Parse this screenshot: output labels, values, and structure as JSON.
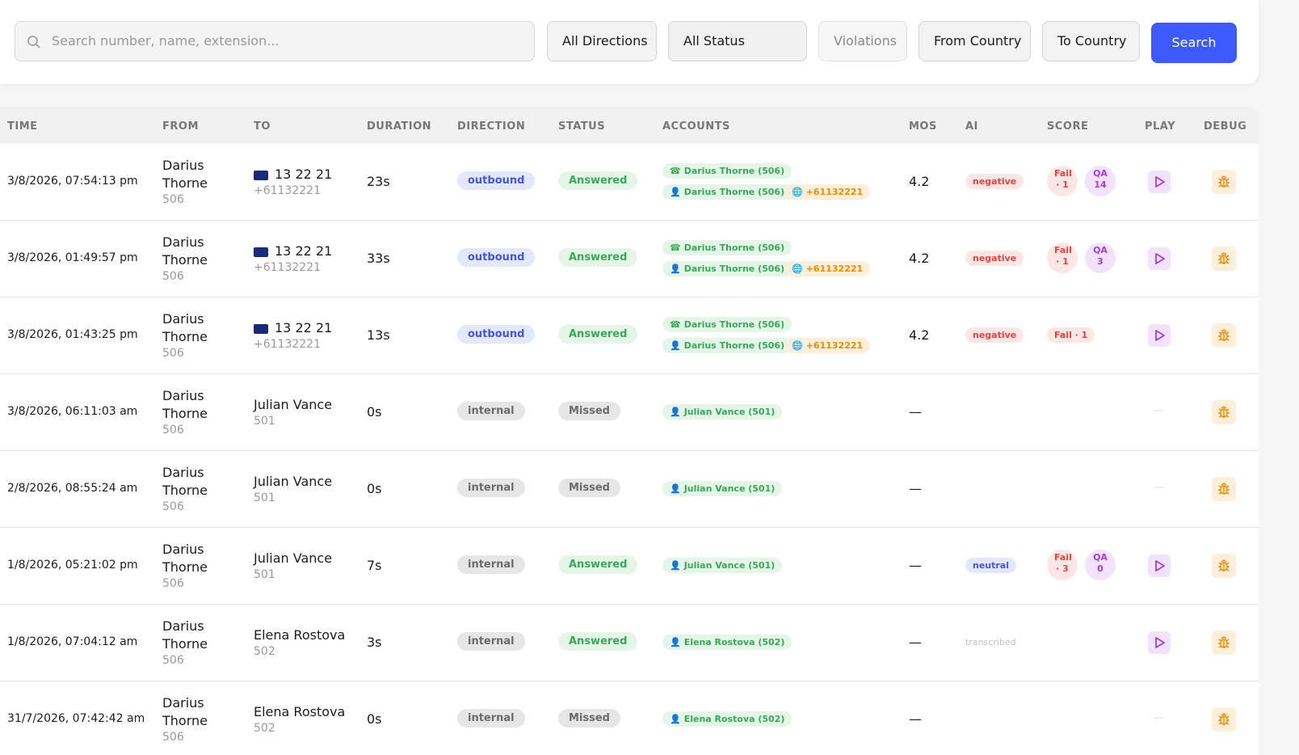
{
  "filters": {
    "search_placeholder": "Search number, name, extension...",
    "buttons": [
      "All Directions",
      "All Status",
      "Violations",
      "From Country",
      "To Country"
    ],
    "search_button": "Search"
  },
  "tones": {
    "blue": {
      "fg": "#4656d8",
      "bg": "#e4e8fc"
    },
    "gray": {
      "fg": "#6b6b6b",
      "bg": "#e6e6e6"
    },
    "green": {
      "fg": "#3aa85a",
      "bg": "#e5f6e9"
    },
    "red": {
      "fg": "#e0463f",
      "bg": "#fde6e5"
    },
    "purple": {
      "fg": "#a23fd6",
      "bg": "#f2e2fb"
    },
    "orange": {
      "fg": "#f08a00",
      "bg": "#fdefda"
    },
    "plain": {
      "fg": "#c2c2c2",
      "bg": "transparent"
    }
  },
  "table": {
    "headers": [
      "TIME",
      "FROM",
      "TO",
      "DURATION",
      "DIRECTION",
      "STATUS",
      "ACCOUNTS",
      "MOS",
      "AI",
      "SCORE",
      "PLAY",
      "DEBUG"
    ],
    "rows": [
      {
        "time": "3/8/2026, 07:54:13 pm",
        "from_name": "Darius Thorne",
        "from_ext": "506",
        "to_name": "13 22 21",
        "to_sub": "+61132221",
        "duration": "23s",
        "direction": {
          "text": "outbound",
          "tone": "blue"
        },
        "status": {
          "text": "Answered",
          "tone": "green"
        },
        "accounts": {
          "phone": "Darius Thorne (506)",
          "user": "Darius Thorne (506)",
          "external": "+61132221"
        },
        "mos": 4.2,
        "ai": {
          "text": "negative",
          "tone": "red"
        },
        "score": [
          {
            "text": "Fail · 1",
            "tone": "red"
          },
          {
            "text": "QA 14",
            "tone": "purple"
          }
        ]
      },
      {
        "time": "3/8/2026, 01:49:57 pm",
        "from_name": "Darius Thorne",
        "from_ext": "506",
        "to_name": "13 22 21",
        "to_sub": "+61132221",
        "duration": "33s",
        "direction": {
          "text": "outbound",
          "tone": "blue"
        },
        "status": {
          "text": "Answered",
          "tone": "green"
        },
        "accounts": {
          "phone": "Darius Thorne (506)",
          "user": "Darius Thorne (506)",
          "external": "+61132221"
        },
        "mos": 4.2,
        "ai": {
          "text": "negative",
          "tone": "red"
        },
        "score": [
          {
            "text": "Fail · 1",
            "tone": "red"
          },
          {
            "text": "QA 3",
            "tone": "purple"
          }
        ]
      },
      {
        "time": "3/8/2026, 01:43:25 pm",
        "from_name": "Darius Thorne",
        "from_ext": "506",
        "to_name": "13 22 21",
        "to_sub": "+61132221",
        "duration": "13s",
        "direction": {
          "text": "outbound",
          "tone": "blue"
        },
        "status": {
          "text": "Answered",
          "tone": "green"
        },
        "accounts": {
          "phone": "Darius Thorne (506)",
          "user": "Darius Thorne (506)",
          "external": "+61132221"
        },
        "mos": 4.2,
        "ai": {
          "text": "negative",
          "tone": "red"
        },
        "score": [
          {
            "text": "Fail · 1",
            "tone": "red"
          }
        ]
      },
      {
        "time": "3/8/2026, 06:11:03 am",
        "from_name": "Darius Thorne",
        "from_ext": "506",
        "to_name": "Julian Vance",
        "to_sub": "501",
        "duration": "0s",
        "direction": {
          "text": "internal",
          "tone": "gray"
        },
        "status": {
          "text": "Missed",
          "tone": "gray"
        },
        "accounts": {
          "user": "Julian Vance (501)"
        },
        "mos": "—",
        "play": "—"
      },
      {
        "time": "2/8/2026, 08:55:24 am",
        "from_name": "Darius Thorne",
        "from_ext": "506",
        "to_name": "Julian Vance",
        "to_sub": "501",
        "duration": "0s",
        "direction": {
          "text": "internal",
          "tone": "gray"
        },
        "status": {
          "text": "Missed",
          "tone": "gray"
        },
        "accounts": {
          "user": "Julian Vance (501)"
        },
        "mos": "—",
        "play": "—"
      },
      {
        "time": "1/8/2026, 05:21:02 pm",
        "from_name": "Darius Thorne",
        "from_ext": "506",
        "to_name": "Julian Vance",
        "to_sub": "501",
        "duration": "7s",
        "direction": {
          "text": "internal",
          "tone": "gray"
        },
        "status": {
          "text": "Answered",
          "tone": "green"
        },
        "accounts": {
          "user": "Julian Vance (501)"
        },
        "mos": "—",
        "ai": {
          "text": "neutral",
          "tone": "blue"
        },
        "score": [
          {
            "text": "Fail · 3",
            "tone": "red"
          },
          {
            "text": "QA 0",
            "tone": "purple"
          }
        ]
      },
      {
        "time": "1/8/2026, 07:04:12 am",
        "from_name": "Darius Thorne",
        "from_ext": "506",
        "to_name": "Elena Rostova",
        "to_sub": "502",
        "duration": "3s",
        "direction": {
          "text": "internal",
          "tone": "gray"
        },
        "status": {
          "text": "Answered",
          "tone": "green"
        },
        "accounts": {
          "user": "Elena Rostova (502)"
        },
        "mos": "—",
        "ai": {
          "text": "transcribed",
          "tone": "plain"
        }
      },
      {
        "time": "31/7/2026, 07:42:42 am",
        "from_name": "Darius Thorne",
        "from_ext": "506",
        "to_name": "Elena Rostova",
        "to_sub": "502",
        "duration": "0s",
        "direction": {
          "text": "internal",
          "tone": "gray"
        },
        "status": {
          "text": "Missed",
          "tone": "gray"
        },
        "accounts": {
          "user": "Elena Rostova (502)"
        },
        "mos": "—",
        "play": "—"
      }
    ]
  }
}
